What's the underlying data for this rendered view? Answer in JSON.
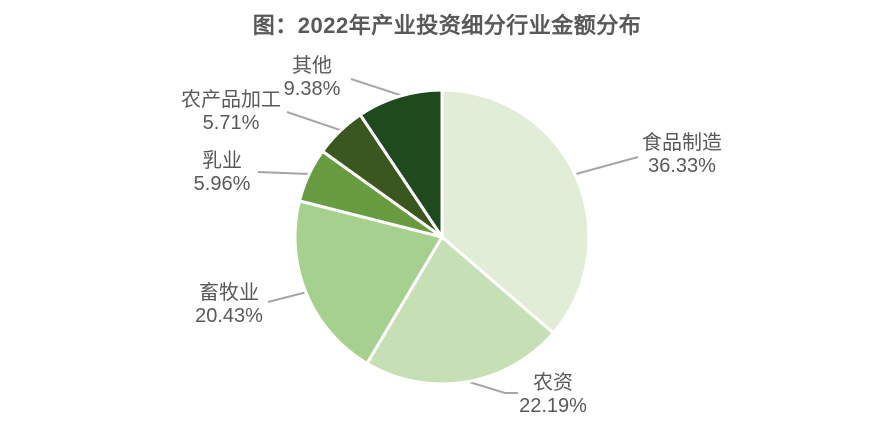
{
  "title": "图：2022年产业投资细分行业金额分布",
  "chart_data": {
    "type": "pie",
    "title": "图：2022年产业投资细分行业金额分布",
    "categories": [
      "食品制造",
      "农资",
      "畜牧业",
      "乳业",
      "农产品加工",
      "其他"
    ],
    "values": [
      36.33,
      22.19,
      20.43,
      5.96,
      5.71,
      9.38
    ],
    "slices": [
      {
        "name": "食品制造",
        "value": 36.33,
        "pct_label": "36.33%",
        "color": "#e2edd7"
      },
      {
        "name": "农资",
        "value": 22.19,
        "pct_label": "22.19%",
        "color": "#c6dfb5"
      },
      {
        "name": "畜牧业",
        "value": 20.43,
        "pct_label": "20.43%",
        "color": "#a6d08e"
      },
      {
        "name": "乳业",
        "value": 5.96,
        "pct_label": "5.96%",
        "color": "#699c41"
      },
      {
        "name": "农产品加工",
        "value": 5.71,
        "pct_label": "5.71%",
        "color": "#3a571f"
      },
      {
        "name": "其他",
        "value": 9.38,
        "pct_label": "9.38%",
        "color": "#1e4a1e"
      }
    ],
    "start_angle_deg": 0,
    "direction": "clockwise",
    "slice_border_color": "#ffffff",
    "leader_line_color": "#a6a6a6",
    "label_text_color": "#595959",
    "title_color": "#595959",
    "background_color": "#ffffff",
    "legend": "none",
    "data_labels": "category name + percent, outside with leader lines"
  }
}
